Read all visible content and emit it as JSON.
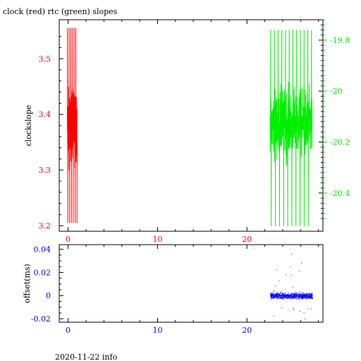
{
  "title": "clock (red) rtc (green) slopes",
  "footer": "2020-11-22 info",
  "colors": {
    "red": "#ff0000",
    "green": "#00ee00",
    "blue": "#0000ff",
    "axis": "#000000"
  },
  "chart_data": [
    {
      "type": "line",
      "title": "clock (red) rtc (green) slopes",
      "ylabel": "clockslope",
      "xlim": [
        -1,
        28.5
      ],
      "xticks": [
        "0",
        "10",
        "20"
      ],
      "grid": false,
      "left_axis": {
        "ylim": [
          3.19,
          3.57
        ],
        "ticks": [
          "3.2",
          "3.3",
          "3.4",
          "3.5"
        ],
        "color": "#ff0000"
      },
      "right_axis": {
        "ylim": [
          -20.55,
          -19.72
        ],
        "ticks": [
          "-19.8",
          "-20",
          "-20.2",
          "-20.4"
        ],
        "color": "#00ee00"
      },
      "series": [
        {
          "name": "clock",
          "color": "#ff0000",
          "axis": "left",
          "x_range": [
            -0.1,
            1.0
          ],
          "y_min": 3.205,
          "y_max": 3.555,
          "y_center": 3.38,
          "count": 220
        },
        {
          "name": "rtc",
          "color": "#00ee00",
          "axis": "right",
          "x_range": [
            22.6,
            27.3
          ],
          "y_min": -20.53,
          "y_max": -19.76,
          "y_center": -20.13,
          "count": 420
        }
      ]
    },
    {
      "type": "scatter",
      "ylabel": "offset(ms)",
      "xlim": [
        -1,
        28.5
      ],
      "ylim": [
        -0.023,
        0.044
      ],
      "xticks": [
        "0",
        "10",
        "20"
      ],
      "yticks": [
        "0.04",
        "0.02",
        "0",
        "-0.02"
      ],
      "grid": false,
      "series": [
        {
          "name": "offset",
          "color": "#0000ff",
          "x_range": [
            22.6,
            27.3
          ],
          "y_min": -0.02,
          "y_max": 0.042,
          "y_center": 0.0,
          "count": 900
        }
      ]
    }
  ]
}
